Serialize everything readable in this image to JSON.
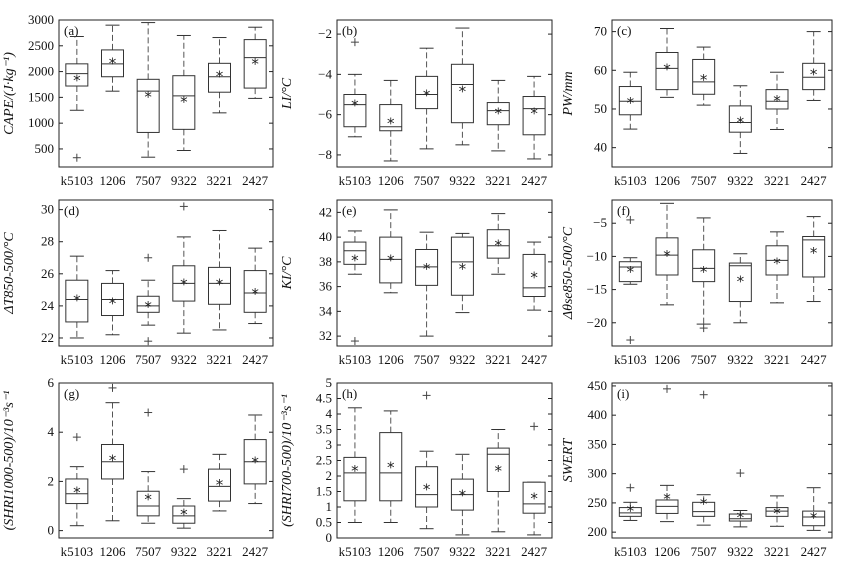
{
  "chart_data": [
    {
      "type": "box",
      "panel_label": "(a)",
      "ylabel": "CAPE/(J·kg⁻¹)",
      "ylim": [
        150,
        3000
      ],
      "yticks": [
        500,
        1000,
        1500,
        2000,
        2500,
        3000
      ],
      "categories": [
        "k5103",
        "1206",
        "7507",
        "9322",
        "3221",
        "2427"
      ],
      "boxes": [
        {
          "min": 1250,
          "q1": 1720,
          "median": 1960,
          "q3": 2150,
          "max": 2680,
          "mean": 1850,
          "outliers": [
            330
          ]
        },
        {
          "min": 1620,
          "q1": 1900,
          "median": 2150,
          "q3": 2420,
          "max": 2900,
          "mean": 2180,
          "outliers": []
        },
        {
          "min": 340,
          "q1": 820,
          "median": 1620,
          "q3": 1850,
          "max": 2950,
          "mean": 1530,
          "outliers": []
        },
        {
          "min": 470,
          "q1": 880,
          "median": 1530,
          "q3": 1920,
          "max": 2700,
          "mean": 1430,
          "outliers": []
        },
        {
          "min": 1200,
          "q1": 1600,
          "median": 1900,
          "q3": 2160,
          "max": 2660,
          "mean": 1920,
          "outliers": []
        },
        {
          "min": 1480,
          "q1": 1680,
          "median": 2270,
          "q3": 2620,
          "max": 2860,
          "mean": 2170,
          "outliers": []
        }
      ]
    },
    {
      "type": "box",
      "panel_label": "(b)",
      "ylabel": "LI/°C",
      "ylim": [
        -8.6,
        -1.3
      ],
      "yticks": [
        -8,
        -6,
        -4,
        -2
      ],
      "categories": [
        "k5103",
        "1206",
        "7507",
        "9322",
        "3221",
        "2427"
      ],
      "boxes": [
        {
          "min": -7.1,
          "q1": -6.6,
          "median": -5.5,
          "q3": -5.0,
          "max": -4.0,
          "mean": -5.5,
          "outliers": [
            -2.4
          ]
        },
        {
          "min": -8.3,
          "q1": -6.8,
          "median": -6.6,
          "q3": -5.5,
          "max": -4.3,
          "mean": -6.4,
          "outliers": []
        },
        {
          "min": -7.7,
          "q1": -5.7,
          "median": -5.0,
          "q3": -4.1,
          "max": -2.7,
          "mean": -5.0,
          "outliers": []
        },
        {
          "min": -7.5,
          "q1": -6.4,
          "median": -4.5,
          "q3": -3.5,
          "max": -1.7,
          "mean": -4.8,
          "outliers": []
        },
        {
          "min": -7.8,
          "q1": -6.5,
          "median": -5.8,
          "q3": -5.4,
          "max": -4.3,
          "mean": -5.9,
          "outliers": []
        },
        {
          "min": -8.2,
          "q1": -7.0,
          "median": -5.7,
          "q3": -5.1,
          "max": -4.1,
          "mean": -5.9,
          "outliers": []
        }
      ]
    },
    {
      "type": "box",
      "panel_label": "(c)",
      "ylabel": "PW/mm",
      "ylim": [
        35,
        73
      ],
      "yticks": [
        40,
        50,
        60,
        70
      ],
      "categories": [
        "k5103",
        "1206",
        "7507",
        "9322",
        "3221",
        "2427"
      ],
      "boxes": [
        {
          "min": 44.8,
          "q1": 48.5,
          "median": 52.0,
          "q3": 55.8,
          "max": 59.5,
          "mean": 51.8,
          "outliers": []
        },
        {
          "min": 53.0,
          "q1": 55.0,
          "median": 60.5,
          "q3": 64.6,
          "max": 70.8,
          "mean": 60.4,
          "outliers": []
        },
        {
          "min": 51.0,
          "q1": 53.8,
          "median": 57.0,
          "q3": 62.8,
          "max": 66.0,
          "mean": 57.7,
          "outliers": []
        },
        {
          "min": 38.5,
          "q1": 44.0,
          "median": 46.5,
          "q3": 50.8,
          "max": 56.0,
          "mean": 46.8,
          "outliers": []
        },
        {
          "min": 44.7,
          "q1": 50.0,
          "median": 52.0,
          "q3": 55.0,
          "max": 59.5,
          "mean": 52.3,
          "outliers": []
        },
        {
          "min": 52.2,
          "q1": 55.0,
          "median": 58.2,
          "q3": 61.8,
          "max": 70.0,
          "mean": 59.2,
          "outliers": []
        }
      ]
    },
    {
      "type": "box",
      "panel_label": "(d)",
      "ylabel": "ΔT850-500/°C",
      "ylim": [
        21.5,
        30.6
      ],
      "yticks": [
        22,
        24,
        26,
        28,
        30
      ],
      "categories": [
        "k5103",
        "1206",
        "7507",
        "9322",
        "3221",
        "2427"
      ],
      "boxes": [
        {
          "min": 22.0,
          "q1": 23.0,
          "median": 24.4,
          "q3": 25.6,
          "max": 27.1,
          "mean": 24.4,
          "outliers": []
        },
        {
          "min": 22.2,
          "q1": 23.4,
          "median": 24.4,
          "q3": 25.4,
          "max": 26.2,
          "mean": 24.2,
          "outliers": []
        },
        {
          "min": 22.8,
          "q1": 23.6,
          "median": 24.0,
          "q3": 24.6,
          "max": 25.6,
          "mean": 24.0,
          "outliers": [
            27.0,
            21.8
          ]
        },
        {
          "min": 22.3,
          "q1": 24.3,
          "median": 25.4,
          "q3": 26.5,
          "max": 28.3,
          "mean": 25.4,
          "outliers": [
            30.2
          ]
        },
        {
          "min": 22.5,
          "q1": 24.1,
          "median": 25.4,
          "q3": 26.4,
          "max": 28.7,
          "mean": 25.4,
          "outliers": []
        },
        {
          "min": 22.9,
          "q1": 23.6,
          "median": 24.8,
          "q3": 26.2,
          "max": 27.6,
          "mean": 24.8,
          "outliers": []
        }
      ]
    },
    {
      "type": "box",
      "panel_label": "(e)",
      "ylabel": "KI/°C",
      "ylim": [
        31.2,
        43.0
      ],
      "yticks": [
        32,
        34,
        36,
        38,
        40,
        42
      ],
      "categories": [
        "k5103",
        "1206",
        "7507",
        "9322",
        "3221",
        "2427"
      ],
      "boxes": [
        {
          "min": 37.0,
          "q1": 37.8,
          "median": 38.9,
          "q3": 39.6,
          "max": 40.5,
          "mean": 38.2,
          "outliers": [
            31.6
          ]
        },
        {
          "min": 35.5,
          "q1": 36.3,
          "median": 38.2,
          "q3": 40.0,
          "max": 42.2,
          "mean": 38.2,
          "outliers": []
        },
        {
          "min": 32.0,
          "q1": 36.1,
          "median": 37.6,
          "q3": 39.0,
          "max": 40.4,
          "mean": 37.5,
          "outliers": []
        },
        {
          "min": 33.9,
          "q1": 35.3,
          "median": 38.0,
          "q3": 40.0,
          "max": 40.3,
          "mean": 37.5,
          "outliers": []
        },
        {
          "min": 37.0,
          "q1": 38.3,
          "median": 39.3,
          "q3": 40.6,
          "max": 41.9,
          "mean": 39.4,
          "outliers": []
        },
        {
          "min": 34.1,
          "q1": 35.2,
          "median": 35.9,
          "q3": 38.6,
          "max": 39.6,
          "mean": 36.8,
          "outliers": []
        }
      ]
    },
    {
      "type": "box",
      "panel_label": "(f)",
      "ylabel": "Δθse850-500/°C",
      "ylim": [
        -23.5,
        -1.5
      ],
      "yticks": [
        -20,
        -15,
        -10,
        -5
      ],
      "categories": [
        "k5103",
        "1206",
        "7507",
        "9322",
        "3221",
        "2427"
      ],
      "boxes": [
        {
          "min": -14.2,
          "q1": -13.8,
          "median": -11.6,
          "q3": -10.8,
          "max": -10.2,
          "mean": -12.2,
          "outliers": [
            -4.5,
            -22.6
          ]
        },
        {
          "min": -17.3,
          "q1": -12.8,
          "median": -9.8,
          "q3": -7.2,
          "max": -2.0,
          "mean": -9.8,
          "outliers": []
        },
        {
          "min": -20.2,
          "q1": -13.8,
          "median": -11.8,
          "q3": -9.0,
          "max": -4.2,
          "mean": -12.2,
          "outliers": [
            -20.8
          ]
        },
        {
          "min": -20.0,
          "q1": -16.8,
          "median": -11.4,
          "q3": -11.0,
          "max": -9.6,
          "mean": -13.6,
          "outliers": []
        },
        {
          "min": -17.0,
          "q1": -12.8,
          "median": -10.6,
          "q3": -8.4,
          "max": -6.3,
          "mean": -10.9,
          "outliers": []
        },
        {
          "min": -16.8,
          "q1": -13.1,
          "median": -7.5,
          "q3": -7.0,
          "max": -4.0,
          "mean": -9.3,
          "outliers": []
        }
      ]
    },
    {
      "type": "box",
      "panel_label": "(g)",
      "ylabel": "(SHRI1000-500)/10⁻³s⁻¹",
      "ylim": [
        -0.3,
        6.0
      ],
      "yticks": [
        0,
        2,
        4,
        6
      ],
      "categories": [
        "k5103",
        "1206",
        "7507",
        "9322",
        "3221",
        "2427"
      ],
      "boxes": [
        {
          "min": 0.2,
          "q1": 1.1,
          "median": 1.5,
          "q3": 2.1,
          "max": 2.6,
          "mean": 1.6,
          "outliers": [
            3.8
          ]
        },
        {
          "min": 0.4,
          "q1": 2.1,
          "median": 2.8,
          "q3": 3.5,
          "max": 5.2,
          "mean": 2.9,
          "outliers": [
            5.8
          ]
        },
        {
          "min": 0.3,
          "q1": 0.6,
          "median": 1.0,
          "q3": 1.6,
          "max": 2.4,
          "mean": 1.3,
          "outliers": [
            4.8
          ]
        },
        {
          "min": 0.1,
          "q1": 0.3,
          "median": 0.6,
          "q3": 1.0,
          "max": 1.3,
          "mean": 0.7,
          "outliers": [
            2.5
          ]
        },
        {
          "min": 0.8,
          "q1": 1.2,
          "median": 1.8,
          "q3": 2.5,
          "max": 3.1,
          "mean": 1.9,
          "outliers": []
        },
        {
          "min": 1.1,
          "q1": 1.9,
          "median": 2.8,
          "q3": 3.7,
          "max": 4.7,
          "mean": 2.8,
          "outliers": []
        }
      ]
    },
    {
      "type": "box",
      "panel_label": "(h)",
      "ylabel": "(SHRI700-500)/10⁻³s⁻¹",
      "ylim": [
        0,
        5
      ],
      "yticks": [
        0,
        0.5,
        1,
        1.5,
        2,
        2.5,
        3,
        3.5,
        4,
        4.5,
        5
      ],
      "categories": [
        "k5103",
        "1206",
        "7507",
        "9322",
        "3221",
        "2427"
      ],
      "boxes": [
        {
          "min": 0.5,
          "q1": 1.2,
          "median": 2.1,
          "q3": 2.6,
          "max": 4.2,
          "mean": 2.2,
          "outliers": []
        },
        {
          "min": 0.5,
          "q1": 1.2,
          "median": 2.1,
          "q3": 3.4,
          "max": 4.1,
          "mean": 2.3,
          "outliers": []
        },
        {
          "min": 0.3,
          "q1": 1.0,
          "median": 1.4,
          "q3": 2.3,
          "max": 2.8,
          "mean": 1.6,
          "outliers": [
            4.6
          ]
        },
        {
          "min": 0.1,
          "q1": 0.9,
          "median": 1.4,
          "q3": 1.9,
          "max": 2.7,
          "mean": 1.4,
          "outliers": []
        },
        {
          "min": 0.2,
          "q1": 1.5,
          "median": 2.7,
          "q3": 2.9,
          "max": 3.5,
          "mean": 2.2,
          "outliers": []
        },
        {
          "min": 0.1,
          "q1": 0.8,
          "median": 1.1,
          "q3": 1.8,
          "max": 1.8,
          "mean": 1.3,
          "outliers": [
            3.6
          ]
        }
      ]
    },
    {
      "type": "box",
      "panel_label": "(i)",
      "ylabel": "SWERT",
      "ylim": [
        190,
        455
      ],
      "yticks": [
        200,
        250,
        300,
        350,
        400,
        450
      ],
      "categories": [
        "k5103",
        "1206",
        "7507",
        "9322",
        "3221",
        "2427"
      ],
      "boxes": [
        {
          "min": 220,
          "q1": 227,
          "median": 233,
          "q3": 242,
          "max": 251,
          "mean": 238,
          "outliers": [
            276
          ]
        },
        {
          "min": 218,
          "q1": 232,
          "median": 244,
          "q3": 255,
          "max": 280,
          "mean": 258,
          "outliers": [
            445
          ]
        },
        {
          "min": 212,
          "q1": 227,
          "median": 235,
          "q3": 251,
          "max": 264,
          "mean": 250,
          "outliers": [
            435
          ]
        },
        {
          "min": 209,
          "q1": 219,
          "median": 223,
          "q3": 231,
          "max": 237,
          "mean": 227,
          "outliers": [
            301
          ]
        },
        {
          "min": 210,
          "q1": 227,
          "median": 236,
          "q3": 242,
          "max": 262,
          "mean": 234,
          "outliers": []
        },
        {
          "min": 203,
          "q1": 211,
          "median": 226,
          "q3": 236,
          "max": 276,
          "mean": 226,
          "outliers": []
        }
      ]
    }
  ]
}
